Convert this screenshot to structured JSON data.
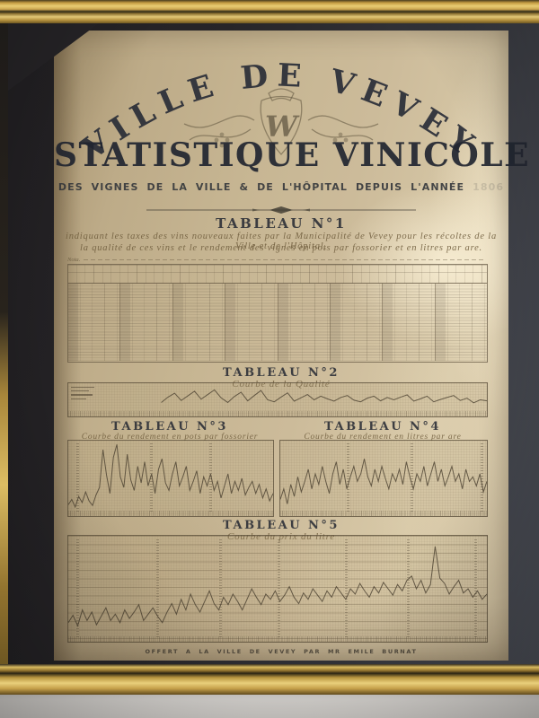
{
  "poster": {
    "arch_title": "VILLE  DE  VEVEY",
    "monogram": "W",
    "main_title": "STATISTIQUE VINICOLE",
    "subtitle": "DES VIGNES DE LA VILLE & DE L'HÔPITAL DEPUIS L'ANNÉE",
    "subtitle_year": "1806",
    "credit": "OFFERT A LA VILLE DE VEVEY PAR MR EMILE BURNAT"
  },
  "tableau1": {
    "title": "TABLEAU N°1",
    "script_line1": "indiquant les taxes des vins nouveaux faites par la Municipalité de Vevey pour les récoltes de la Ville et de l'Hôpital,",
    "script_line2": "la qualité de ces vins et le rendement des vignes en pots par fossorier et en litres par are.",
    "nota": "Nota."
  },
  "chart_data": [
    {
      "id": "quality",
      "type": "line",
      "title": "TABLEAU N°2",
      "label": "Courbe de la Qualité",
      "ylim": [
        0,
        100
      ],
      "values": [
        null,
        null,
        null,
        null,
        null,
        null,
        null,
        null,
        null,
        null,
        null,
        null,
        null,
        null,
        42,
        58,
        70,
        48,
        62,
        76,
        52,
        66,
        80,
        56,
        42,
        60,
        73,
        47,
        63,
        78,
        50,
        44,
        58,
        71,
        46,
        56,
        66,
        50,
        61,
        53,
        46,
        57,
        63,
        49,
        44,
        55,
        61,
        47,
        57,
        50,
        58,
        65,
        46,
        53,
        61,
        44,
        51,
        57,
        63,
        48,
        55,
        41,
        50,
        47
      ]
    },
    {
      "id": "pots",
      "type": "line",
      "title": "TABLEAU N°3",
      "label": "Courbe du rendement en pots par fossorier",
      "ylim": [
        0,
        100
      ],
      "values": [
        15,
        22,
        12,
        26,
        18,
        32,
        20,
        14,
        28,
        38,
        88,
        55,
        30,
        78,
        95,
        52,
        38,
        82,
        48,
        34,
        66,
        44,
        72,
        40,
        56,
        30,
        62,
        76,
        44,
        34,
        56,
        72,
        40,
        52,
        66,
        34,
        46,
        60,
        30,
        52,
        40,
        56,
        34,
        46,
        24,
        40,
        56,
        30,
        46,
        34,
        50,
        28,
        38,
        46,
        30,
        42,
        24,
        36,
        20,
        30
      ]
    },
    {
      "id": "litres",
      "type": "line",
      "title": "TABLEAU N°4",
      "label": "Courbe du rendement en litres par are",
      "ylim": [
        0,
        100
      ],
      "values": [
        22,
        36,
        16,
        42,
        26,
        52,
        32,
        46,
        62,
        36,
        56,
        42,
        66,
        46,
        30,
        56,
        72,
        42,
        62,
        36,
        52,
        66,
        46,
        56,
        76,
        52,
        40,
        62,
        46,
        66,
        50,
        36,
        56,
        46,
        62,
        42,
        72,
        52,
        36,
        56,
        46,
        66,
        40,
        56,
        72,
        46,
        62,
        40,
        52,
        66,
        46,
        56,
        36,
        62,
        46,
        52,
        40,
        56,
        32,
        46
      ]
    },
    {
      "id": "prix",
      "type": "line",
      "title": "TABLEAU N°5",
      "label": "Courbe du prix du litre",
      "ylim": [
        0,
        100
      ],
      "values": [
        18,
        25,
        15,
        30,
        20,
        28,
        16,
        24,
        32,
        20,
        26,
        18,
        30,
        22,
        28,
        35,
        20,
        26,
        32,
        24,
        18,
        28,
        36,
        26,
        40,
        30,
        45,
        35,
        28,
        38,
        48,
        36,
        30,
        42,
        35,
        45,
        38,
        30,
        40,
        50,
        42,
        35,
        45,
        40,
        48,
        38,
        44,
        52,
        42,
        36,
        46,
        40,
        50,
        44,
        38,
        48,
        42,
        52,
        46,
        40,
        50,
        45,
        55,
        48,
        42,
        52,
        46,
        56,
        50,
        44,
        54,
        48,
        58,
        62,
        50,
        58,
        46,
        54,
        90,
        60,
        55,
        45,
        52,
        58,
        46,
        50,
        42,
        48,
        40,
        45
      ]
    }
  ],
  "style": {
    "ink_color": "#2a2d36",
    "script_ink_color": "#705d3e",
    "paper_color": "#c7b693",
    "frame_gold": "#d9ba60",
    "mat_color": "#272528",
    "curve_color": "rgba(74,64,48,0.8)"
  }
}
